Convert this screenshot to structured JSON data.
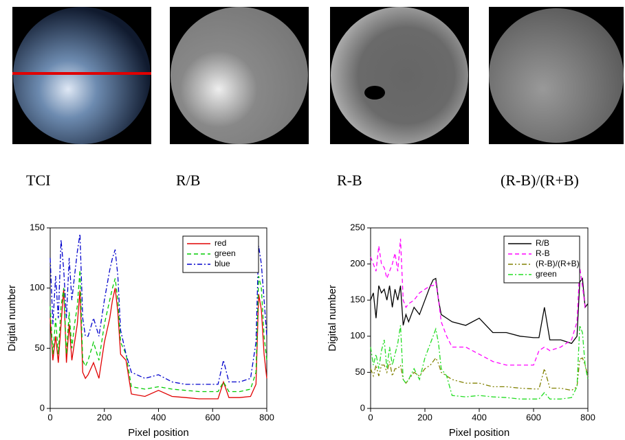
{
  "panels": {
    "labels": [
      "TCI",
      "R/B",
      "R-B",
      "(R-B)/(R+B)"
    ]
  },
  "chart_data": [
    {
      "type": "line",
      "xlabel": "Pixel position",
      "ylabel": "Digital number",
      "xlim": [
        0,
        800
      ],
      "xticks": [
        0,
        200,
        400,
        600,
        800
      ],
      "ylim": [
        0,
        150
      ],
      "yticks": [
        0,
        50,
        100,
        150
      ],
      "legend": "upper right",
      "x": [
        0,
        10,
        20,
        30,
        40,
        50,
        60,
        70,
        80,
        90,
        100,
        110,
        120,
        130,
        140,
        160,
        180,
        200,
        220,
        230,
        240,
        250,
        260,
        280,
        300,
        350,
        400,
        450,
        500,
        550,
        600,
        620,
        640,
        660,
        700,
        740,
        760,
        770,
        780,
        790,
        800
      ],
      "series": [
        {
          "name": "red",
          "color": "#e00000",
          "dash": "solid",
          "values": [
            75,
            40,
            60,
            38,
            70,
            100,
            38,
            70,
            40,
            55,
            70,
            98,
            30,
            25,
            28,
            38,
            25,
            55,
            75,
            90,
            100,
            80,
            45,
            40,
            12,
            10,
            15,
            10,
            9,
            8,
            8,
            8,
            22,
            9,
            9,
            10,
            20,
            95,
            82,
            45,
            25
          ]
        },
        {
          "name": "green",
          "color": "#00cc00",
          "dash": "dash",
          "values": [
            85,
            45,
            75,
            45,
            85,
            100,
            45,
            80,
            50,
            70,
            85,
            115,
            40,
            35,
            40,
            55,
            40,
            70,
            90,
            100,
            108,
            90,
            55,
            45,
            18,
            16,
            18,
            16,
            15,
            14,
            14,
            14,
            22,
            14,
            14,
            16,
            30,
            110,
            100,
            60,
            40
          ]
        },
        {
          "name": "blue",
          "color": "#0000cc",
          "dash": "dashdot",
          "values": [
            125,
            70,
            110,
            75,
            140,
            115,
            75,
            125,
            90,
            110,
            130,
            145,
            75,
            60,
            60,
            75,
            60,
            90,
            115,
            125,
            132,
            110,
            65,
            45,
            30,
            25,
            28,
            22,
            20,
            20,
            20,
            20,
            40,
            22,
            22,
            25,
            55,
            135,
            120,
            90,
            60
          ]
        }
      ]
    },
    {
      "type": "line",
      "xlabel": "Pixel position",
      "ylabel": "Digital number",
      "xlim": [
        0,
        800
      ],
      "xticks": [
        0,
        200,
        400,
        600,
        800
      ],
      "ylim": [
        0,
        250
      ],
      "yticks": [
        0,
        50,
        100,
        150,
        200,
        250
      ],
      "legend": "upper right",
      "x": [
        0,
        10,
        20,
        30,
        40,
        50,
        60,
        70,
        80,
        90,
        100,
        110,
        120,
        130,
        140,
        160,
        180,
        200,
        220,
        230,
        240,
        250,
        260,
        280,
        300,
        350,
        400,
        450,
        500,
        550,
        600,
        620,
        640,
        660,
        700,
        740,
        760,
        770,
        780,
        790,
        800
      ],
      "series": [
        {
          "name": "R/B",
          "color": "#000000",
          "dash": "solid",
          "values": [
            150,
            160,
            125,
            170,
            160,
            165,
            150,
            170,
            140,
            165,
            150,
            170,
            115,
            130,
            120,
            140,
            130,
            150,
            170,
            178,
            180,
            150,
            130,
            125,
            120,
            115,
            125,
            105,
            105,
            100,
            98,
            98,
            140,
            95,
            95,
            90,
            100,
            175,
            180,
            140,
            145
          ]
        },
        {
          "name": "R-B",
          "color": "#ff00ff",
          "dash": "dash",
          "values": [
            210,
            200,
            190,
            225,
            200,
            195,
            180,
            190,
            200,
            215,
            190,
            235,
            150,
            140,
            145,
            150,
            160,
            165,
            170,
            170,
            175,
            150,
            120,
            100,
            85,
            85,
            75,
            65,
            60,
            60,
            60,
            80,
            85,
            80,
            85,
            95,
            120,
            195,
            170,
            140,
            140
          ]
        },
        {
          "name": "(R-B)/(R+B)",
          "color": "#808000",
          "dash": "dashdotdot",
          "values": [
            55,
            45,
            60,
            45,
            60,
            60,
            50,
            65,
            45,
            55,
            55,
            60,
            40,
            35,
            40,
            50,
            45,
            55,
            60,
            65,
            70,
            62,
            50,
            45,
            40,
            35,
            35,
            30,
            30,
            28,
            27,
            27,
            55,
            28,
            28,
            25,
            30,
            68,
            70,
            60,
            45
          ]
        },
        {
          "name": "green",
          "color": "#22dd22",
          "dash": "dashdot",
          "values": [
            85,
            60,
            75,
            55,
            80,
            95,
            55,
            85,
            60,
            75,
            90,
            115,
            40,
            35,
            40,
            55,
            40,
            70,
            90,
            100,
            110,
            90,
            55,
            45,
            18,
            16,
            18,
            16,
            15,
            13,
            13,
            13,
            22,
            13,
            13,
            15,
            30,
            115,
            105,
            60,
            40
          ]
        }
      ]
    }
  ]
}
